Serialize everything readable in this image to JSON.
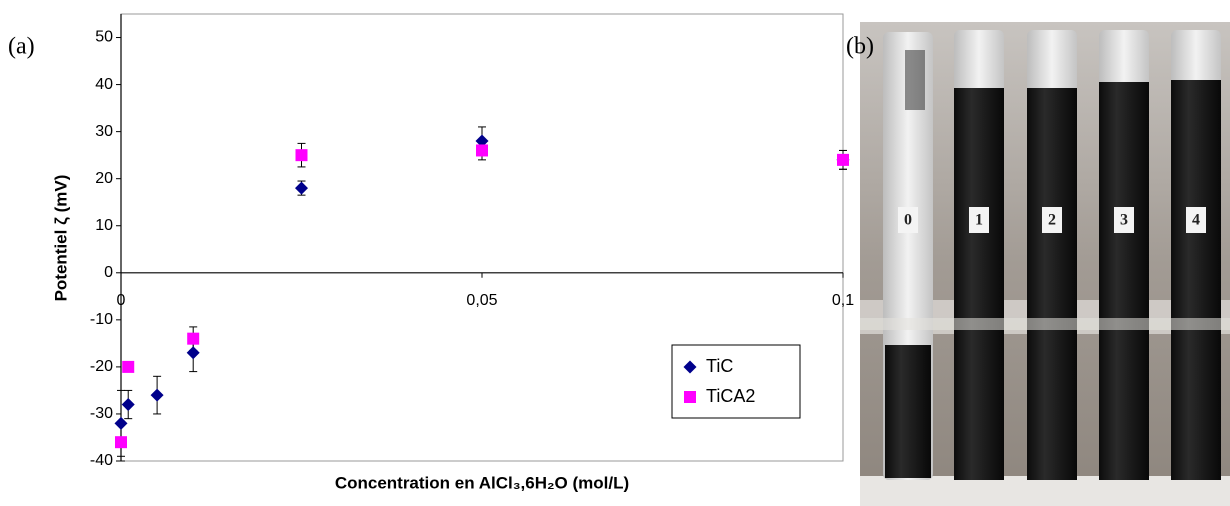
{
  "chart_data": {
    "type": "scatter",
    "panel_label": "(a)",
    "xlabel": "Concentration en AlCl₃,6H₂O (mol/L)",
    "ylabel": "Potentiel ζ (mV)",
    "xlim": [
      0,
      0.1
    ],
    "xticks": [
      0,
      {
        "value": 0.05,
        "label": "0,05"
      },
      {
        "value": 0.1,
        "label": "0,1"
      }
    ],
    "ylim": [
      -40,
      55
    ],
    "yticks": [
      -40,
      -30,
      -20,
      -10,
      0,
      10,
      20,
      30,
      40,
      50
    ],
    "legend": "lower right",
    "series": [
      {
        "name": "TiC",
        "color": "#00008b",
        "marker": "diamond",
        "x": [
          0,
          0.001,
          0.005,
          0.01,
          0.025,
          0.05,
          0.1
        ],
        "values": [
          -32,
          -28,
          -26,
          -17,
          18,
          28,
          24
        ],
        "errors": [
          7,
          3,
          4,
          4,
          1.5,
          3,
          2
        ]
      },
      {
        "name": "TiCA2",
        "color": "#ff00ff",
        "marker": "square",
        "x": [
          0,
          0.001,
          0.01,
          0.025,
          0.05,
          0.1
        ],
        "values": [
          -36,
          -20,
          -14,
          25,
          26,
          24
        ],
        "errors": [
          4,
          1,
          2.5,
          2.5,
          2,
          2
        ]
      }
    ]
  },
  "photo": {
    "panel_label": "(b)",
    "tube_labels": [
      "0",
      "1",
      "2",
      "3",
      "4"
    ]
  }
}
